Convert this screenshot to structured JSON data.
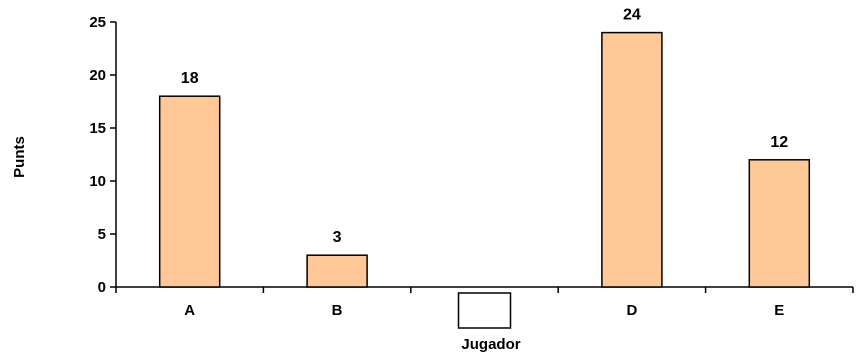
{
  "chart_data": {
    "type": "bar",
    "categories": [
      "A",
      "B",
      "",
      "D",
      "E"
    ],
    "values": [
      18,
      3,
      null,
      24,
      12
    ],
    "data_labels": [
      "18",
      "3",
      "",
      "24",
      "12"
    ],
    "xlabel": "Jugador",
    "ylabel": "Punts",
    "ylim": [
      0,
      25
    ],
    "yticks": [
      0,
      5,
      10,
      15,
      20,
      25
    ],
    "grid": false,
    "bar_color": "#FFC896",
    "bar_edge_color": "#000000",
    "blank_category_box": true
  }
}
